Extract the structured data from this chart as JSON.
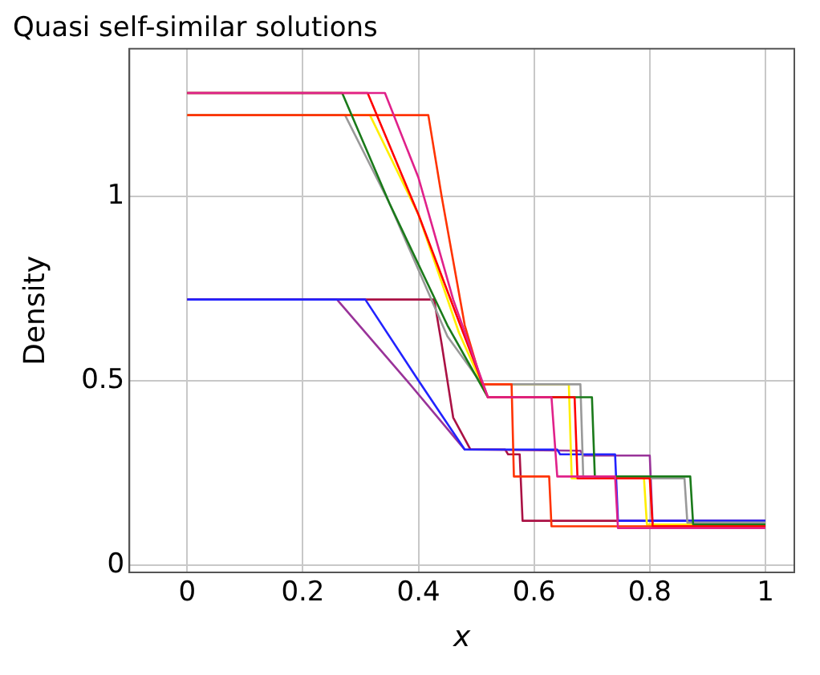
{
  "chart_data": {
    "type": "line",
    "title": "Quasi self-similar solutions",
    "xlabel": "x",
    "ylabel": "Density",
    "xlim": [
      -0.1,
      1.05
    ],
    "ylim": [
      -0.02,
      1.4
    ],
    "xticks": [
      0,
      0.2,
      0.4,
      0.6,
      0.8,
      1
    ],
    "yticks": [
      0,
      0.5,
      1
    ],
    "grid": true,
    "legend": false,
    "marker": "none",
    "line_style": "solid",
    "series": [
      {
        "color": "#e0218a",
        "x": [
          0,
          0.342,
          0.4,
          0.46,
          0.52,
          0.63,
          0.64,
          0.74,
          0.745,
          1
        ],
        "values": [
          1.28,
          1.28,
          1.05,
          0.72,
          0.455,
          0.455,
          0.24,
          0.24,
          0.1,
          0.1
        ]
      },
      {
        "color": "#ff0000",
        "x": [
          0,
          0.312,
          0.4,
          0.47,
          0.52,
          0.67,
          0.675,
          0.8,
          0.805,
          1
        ],
        "values": [
          1.28,
          1.28,
          0.95,
          0.66,
          0.455,
          0.455,
          0.235,
          0.235,
          0.105,
          0.105
        ]
      },
      {
        "color": "#1a7a1a",
        "x": [
          0,
          0.268,
          0.35,
          0.45,
          0.52,
          0.7,
          0.705,
          0.87,
          0.875,
          1
        ],
        "values": [
          1.28,
          1.28,
          0.98,
          0.65,
          0.455,
          0.455,
          0.24,
          0.24,
          0.11,
          0.11
        ]
      },
      {
        "color": "#ff3300",
        "x": [
          0,
          0.417,
          0.44,
          0.48,
          0.51,
          0.561,
          0.565,
          0.626,
          0.63,
          1
        ],
        "values": [
          1.22,
          1.22,
          1.0,
          0.65,
          0.49,
          0.49,
          0.24,
          0.24,
          0.105,
          0.105
        ]
      },
      {
        "color": "#999999",
        "x": [
          0,
          0.273,
          0.35,
          0.45,
          0.51,
          0.68,
          0.685,
          0.86,
          0.865,
          1
        ],
        "values": [
          1.22,
          1.22,
          0.98,
          0.62,
          0.49,
          0.49,
          0.235,
          0.235,
          0.115,
          0.115
        ]
      },
      {
        "color": "#ffee00",
        "x": [
          0,
          0.316,
          0.4,
          0.47,
          0.51,
          0.66,
          0.665,
          0.79,
          0.795,
          1
        ],
        "values": [
          1.22,
          1.22,
          0.95,
          0.63,
          0.49,
          0.49,
          0.235,
          0.235,
          0.11,
          0.11
        ]
      },
      {
        "color": "#2222ff",
        "x": [
          0,
          0.308,
          0.4,
          0.48,
          0.64,
          0.645,
          0.74,
          0.745,
          1
        ],
        "values": [
          0.72,
          0.72,
          0.5,
          0.313,
          0.313,
          0.3,
          0.3,
          0.12,
          0.12
        ]
      },
      {
        "color": "#993399",
        "x": [
          0,
          0.259,
          0.38,
          0.48,
          0.68,
          0.685,
          0.8,
          0.805,
          1
        ],
        "values": [
          0.72,
          0.72,
          0.5,
          0.313,
          0.31,
          0.297,
          0.297,
          0.11,
          0.11
        ]
      },
      {
        "color": "#aa1144",
        "x": [
          0,
          0.427,
          0.44,
          0.46,
          0.49,
          0.55,
          0.555,
          0.575,
          0.58,
          1
        ],
        "values": [
          0.72,
          0.72,
          0.6,
          0.4,
          0.313,
          0.313,
          0.3,
          0.3,
          0.12,
          0.12
        ]
      }
    ]
  }
}
